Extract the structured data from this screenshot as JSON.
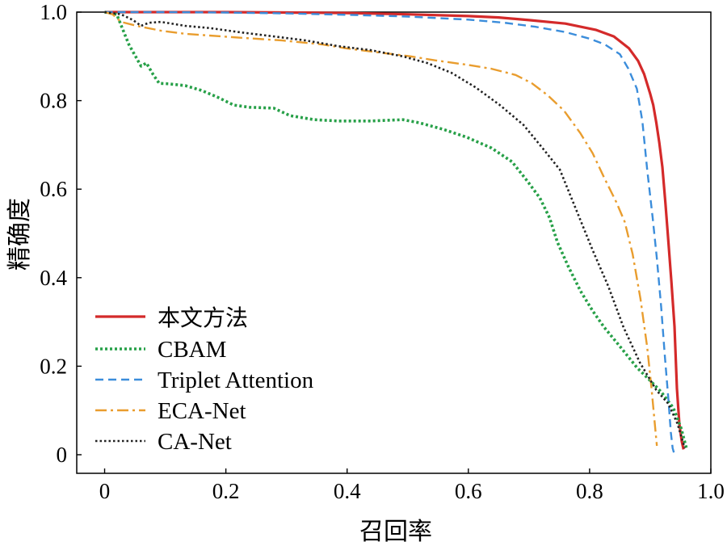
{
  "chart_data": {
    "type": "line",
    "xlabel": "召回率",
    "ylabel": "精确度",
    "xlim": [
      -0.046,
      1.0
    ],
    "ylim": [
      -0.042,
      1.0
    ],
    "xticks": [
      0,
      0.2,
      0.4,
      0.6,
      0.8,
      1.0
    ],
    "xtick_labels": [
      "0",
      "0.2",
      "0.4",
      "0.6",
      "0.8",
      "1.0"
    ],
    "yticks": [
      0,
      0.2,
      0.4,
      0.6,
      0.8,
      1.0
    ],
    "ytick_labels": [
      "0",
      "0.2",
      "0.4",
      "0.6",
      "0.8",
      "1.0"
    ],
    "grid": false,
    "legend": "lower-left",
    "series": [
      {
        "name": "本文方法",
        "color": "#d42a2a",
        "style": "solid",
        "x": [
          0,
          0.1,
          0.2,
          0.3,
          0.4,
          0.5,
          0.6,
          0.65,
          0.7,
          0.76,
          0.81,
          0.84,
          0.865,
          0.88,
          0.89,
          0.9,
          0.905,
          0.91,
          0.915,
          0.92,
          0.925,
          0.93,
          0.935,
          0.94,
          0.944,
          0.948,
          0.952,
          0.955
        ],
        "y": [
          1.0,
          1.0,
          1.0,
          0.999,
          0.998,
          0.995,
          0.991,
          0.988,
          0.982,
          0.974,
          0.96,
          0.945,
          0.918,
          0.89,
          0.86,
          0.815,
          0.79,
          0.75,
          0.705,
          0.65,
          0.57,
          0.48,
          0.39,
          0.29,
          0.15,
          0.07,
          0.03,
          0.012
        ]
      },
      {
        "name": "CBAM",
        "color": "#27a048",
        "style": "dotted",
        "x": [
          0,
          0.02,
          0.029,
          0.04,
          0.051,
          0.06,
          0.069,
          0.08,
          0.09,
          0.106,
          0.133,
          0.16,
          0.186,
          0.213,
          0.239,
          0.279,
          0.306,
          0.346,
          0.386,
          0.439,
          0.492,
          0.519,
          0.559,
          0.598,
          0.638,
          0.672,
          0.698,
          0.718,
          0.734,
          0.747,
          0.765,
          0.785,
          0.805,
          0.824,
          0.851,
          0.878,
          0.898,
          0.918,
          0.938,
          0.951,
          0.96
        ],
        "y": [
          1.0,
          0.995,
          0.964,
          0.927,
          0.9,
          0.878,
          0.885,
          0.859,
          0.839,
          0.838,
          0.834,
          0.823,
          0.808,
          0.79,
          0.785,
          0.783,
          0.766,
          0.757,
          0.754,
          0.754,
          0.757,
          0.75,
          0.735,
          0.717,
          0.693,
          0.662,
          0.617,
          0.58,
          0.535,
          0.48,
          0.425,
          0.37,
          0.325,
          0.288,
          0.243,
          0.197,
          0.17,
          0.142,
          0.106,
          0.06,
          0.013
        ]
      },
      {
        "name": "Triplet Attention",
        "color": "#3b8ddb",
        "style": "dashed",
        "x": [
          0,
          0.1,
          0.2,
          0.3,
          0.4,
          0.5,
          0.6,
          0.66,
          0.71,
          0.76,
          0.8,
          0.825,
          0.85,
          0.864,
          0.878,
          0.887,
          0.895,
          0.904,
          0.911,
          0.918,
          0.924,
          0.93,
          0.934,
          0.937,
          0.939
        ],
        "y": [
          1.0,
          1.0,
          0.999,
          0.997,
          0.994,
          0.99,
          0.983,
          0.976,
          0.967,
          0.955,
          0.94,
          0.927,
          0.905,
          0.872,
          0.827,
          0.754,
          0.644,
          0.535,
          0.443,
          0.334,
          0.224,
          0.124,
          0.05,
          0.015,
          0.005
        ]
      },
      {
        "name": "ECA-Net",
        "color": "#e99d2e",
        "style": "dash-dot",
        "x": [
          0,
          0.013,
          0.027,
          0.053,
          0.093,
          0.133,
          0.173,
          0.226,
          0.293,
          0.359,
          0.399,
          0.452,
          0.505,
          0.545,
          0.598,
          0.638,
          0.678,
          0.705,
          0.731,
          0.758,
          0.785,
          0.805,
          0.824,
          0.844,
          0.858,
          0.871,
          0.884,
          0.895,
          0.902,
          0.907,
          0.911
        ],
        "y": [
          1.0,
          0.995,
          0.978,
          0.969,
          0.958,
          0.951,
          0.947,
          0.942,
          0.936,
          0.927,
          0.918,
          0.909,
          0.9,
          0.891,
          0.881,
          0.872,
          0.858,
          0.839,
          0.812,
          0.777,
          0.726,
          0.681,
          0.626,
          0.571,
          0.526,
          0.453,
          0.352,
          0.243,
          0.151,
          0.078,
          0.02
        ]
      },
      {
        "name": "CA-Net",
        "color": "#222222",
        "style": "dotted",
        "x": [
          0,
          0.027,
          0.047,
          0.06,
          0.073,
          0.093,
          0.133,
          0.173,
          0.226,
          0.279,
          0.332,
          0.386,
          0.439,
          0.492,
          0.532,
          0.572,
          0.612,
          0.652,
          0.691,
          0.724,
          0.751,
          0.778,
          0.805,
          0.831,
          0.856,
          0.883,
          0.91,
          0.93,
          0.945,
          0.957
        ],
        "y": [
          1.0,
          0.995,
          0.982,
          0.969,
          0.976,
          0.978,
          0.969,
          0.964,
          0.954,
          0.945,
          0.936,
          0.923,
          0.914,
          0.9,
          0.885,
          0.863,
          0.83,
          0.79,
          0.745,
          0.69,
          0.644,
          0.553,
          0.462,
          0.38,
          0.288,
          0.208,
          0.146,
          0.115,
          0.07,
          0.015
        ]
      }
    ]
  }
}
